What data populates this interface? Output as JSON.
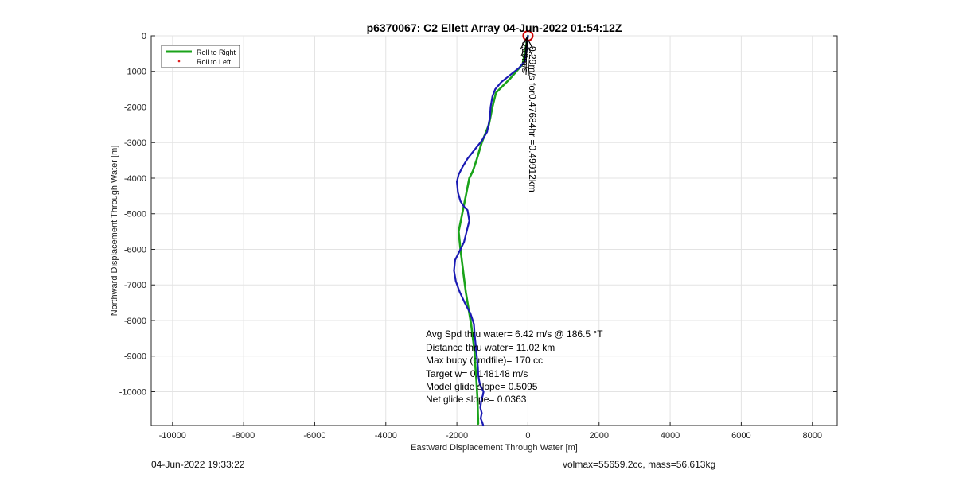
{
  "chart_data": {
    "type": "line",
    "title": "p6370067: C2 Ellett Array 04-Jun-2022 01:54:12Z",
    "xlabel": "Eastward Displacement Through Water [m]",
    "ylabel": "Northward Displacement Through Water [m]",
    "xlim": [
      -10600,
      8700
    ],
    "ylim": [
      -10950,
      0
    ],
    "xticks": [
      -10000,
      -8000,
      -6000,
      -4000,
      -2000,
      0,
      2000,
      4000,
      6000,
      8000
    ],
    "yticks": [
      0,
      -1000,
      -2000,
      -3000,
      -4000,
      -5000,
      -6000,
      -7000,
      -8000,
      -9000,
      -10000
    ],
    "grid": true,
    "legend_position": "top-left",
    "legend": [
      {
        "label": "Roll to Right",
        "color": "#1aa31a",
        "style": "line"
      },
      {
        "label": "Roll to Left",
        "color": "#e02020",
        "style": "dot"
      }
    ],
    "series": [
      {
        "name": "Roll to Right",
        "color": "#1aa31a",
        "x": [
          0,
          -150,
          -500,
          -900,
          -1000,
          -1100,
          -1300,
          -1450,
          -1550,
          -1650,
          -1750,
          -1850,
          -1950,
          -1900,
          -1850,
          -1800,
          -1750,
          -1700,
          -1650,
          -1600,
          -1550,
          -1500,
          -1480,
          -1450,
          -1420,
          -1400
        ],
        "y": [
          0,
          -800,
          -1200,
          -1600,
          -2000,
          -2500,
          -3000,
          -3500,
          -3800,
          -4000,
          -4500,
          -5000,
          -5500,
          -6000,
          -6400,
          -6800,
          -7200,
          -7500,
          -7800,
          -8100,
          -8500,
          -8900,
          -9300,
          -9700,
          -10200,
          -10900
        ]
      },
      {
        "name": "",
        "color": "#1a1ab3",
        "x": [
          0,
          -80,
          -250,
          -500,
          -750,
          -920,
          -1000,
          -1050,
          -1070,
          -1150,
          -1300,
          -1500,
          -1700,
          -1850,
          -1950,
          -2000,
          -1970,
          -1900,
          -1800,
          -1700,
          -1650,
          -1800,
          -1950,
          -2050,
          -2080,
          -2030,
          -1920,
          -1780,
          -1620,
          -1520,
          -1500,
          -1470,
          -1450,
          -1430,
          -1410,
          -1400,
          -1380,
          -1350,
          -1300,
          -1250,
          -1270,
          -1300,
          -1320,
          -1340,
          -1300,
          -1330,
          -1290,
          -1260
        ],
        "y": [
          0,
          -700,
          -900,
          -1100,
          -1300,
          -1500,
          -1700,
          -2000,
          -2300,
          -2700,
          -2950,
          -3200,
          -3450,
          -3700,
          -3900,
          -4100,
          -4400,
          -4650,
          -4800,
          -4900,
          -5200,
          -5800,
          -6100,
          -6300,
          -6600,
          -6900,
          -7200,
          -7500,
          -7800,
          -8100,
          -8400,
          -8700,
          -8900,
          -9100,
          -9300,
          -9500,
          -9650,
          -9800,
          -9900,
          -10000,
          -10100,
          -10200,
          -10300,
          -10450,
          -10600,
          -10750,
          -10850,
          -10950
        ]
      }
    ],
    "marker": {
      "x": 0,
      "y": 0,
      "color": "#cc0000",
      "shape": "circle"
    },
    "annotations": [
      {
        "text": "Avg Spd thru water=  6.42 m/s @ 186.5 °T"
      },
      {
        "text": "Distance thru water= 11.02 km"
      },
      {
        "text": "Max buoy (cmdfile)= 170 cc"
      },
      {
        "text": "Target w= 0.148148 m/s"
      },
      {
        "text": "Model glide slope= 0.5095"
      },
      {
        "text": "Net glide slope= 0.0363"
      }
    ],
    "rotated_annotation": "0.29m/s for0.47684hr =0.49912km",
    "arrow_cluster_text": "0.29m/s"
  },
  "footer": {
    "left": "04-Jun-2022 19:33:22",
    "right": "volmax=55659.2cc, mass=56.613kg"
  }
}
